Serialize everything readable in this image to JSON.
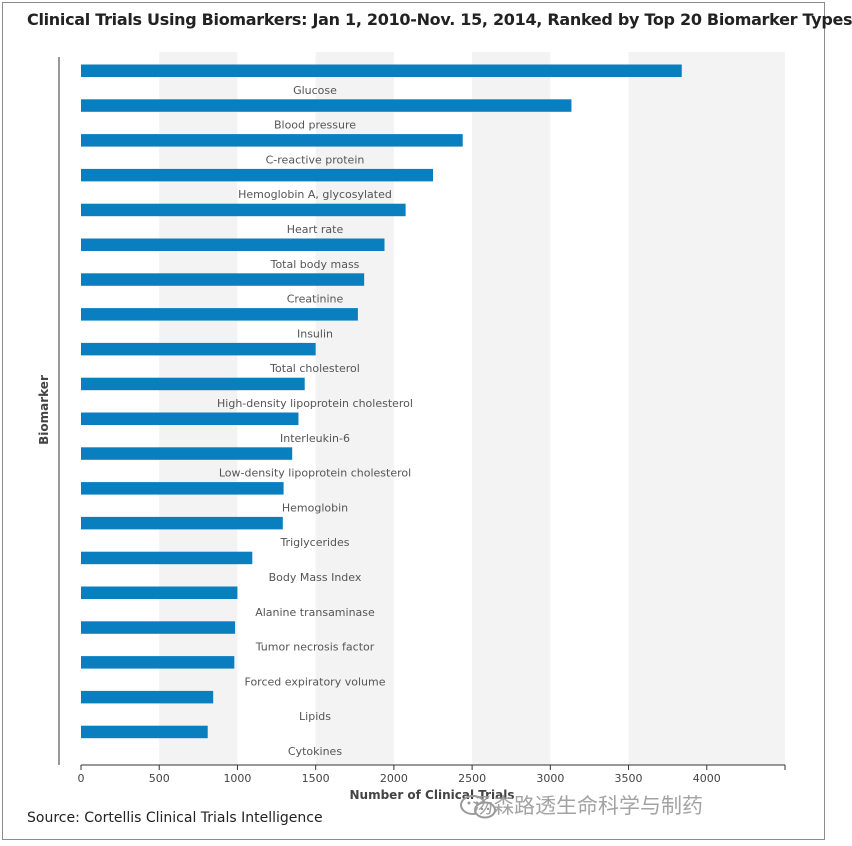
{
  "title": "Clinical Trials Using Biomarkers: Jan 1, 2010-Nov. 15, 2014, Ranked by Top 20 Biomarker Types",
  "source": "Source: Cortellis Clinical Trials Intelligence",
  "watermark": "汤森路透生命科学与制药",
  "watermark_icon": "wechat-icon",
  "chart_data": {
    "type": "bar",
    "orientation": "horizontal",
    "xlabel": "Number of Clinical Trials",
    "ylabel": "Biomarker",
    "xlim": [
      0,
      4500
    ],
    "xticks": [
      0,
      500,
      1000,
      1500,
      2000,
      2500,
      3000,
      3500,
      4000
    ],
    "xtick_labels": [
      "0",
      "500",
      "1000",
      "1500",
      "2000",
      "2500",
      "3000",
      "3500",
      "4000"
    ],
    "grid": "alternating vertical bands",
    "bar_color": "#0a7fc0",
    "categories": [
      "Glucose",
      "Blood pressure",
      "C-reactive protein",
      "Hemoglobin A, glycosylated",
      "Heart rate",
      "Total body mass",
      "Creatinine",
      "Insulin",
      "Total cholesterol",
      "High-density lipoprotein cholesterol",
      "Interleukin-6",
      "Low-density lipoprotein cholesterol",
      "Hemoglobin",
      "Triglycerides",
      "Body Mass Index",
      "Alanine transaminase",
      "Tumor necrosis factor",
      "Forced expiratory volume",
      "Lipids",
      "Cytokines"
    ],
    "values": [
      3840,
      3135,
      2440,
      2250,
      2075,
      1940,
      1810,
      1770,
      1500,
      1430,
      1390,
      1350,
      1295,
      1290,
      1095,
      1000,
      985,
      980,
      845,
      810
    ]
  }
}
